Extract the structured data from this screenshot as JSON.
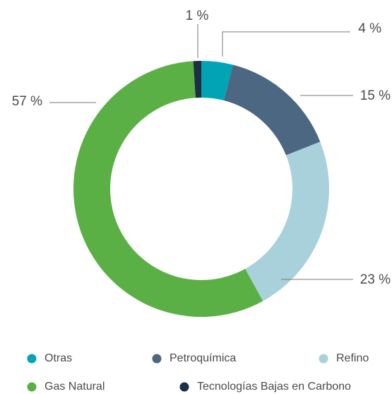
{
  "chart_data": {
    "type": "pie",
    "categories": [
      "Otras",
      "Petroquímica",
      "Refino",
      "Gas Natural",
      "Tecnologías Bajas en Carbono"
    ],
    "values": [
      4,
      15,
      23,
      57,
      1
    ],
    "value_labels": [
      "4 %",
      "15 %",
      "23 %",
      "57 %",
      "1 %"
    ],
    "colors": [
      "#00a4b4",
      "#4b6781",
      "#a9d1db",
      "#5aaf45",
      "#1e2f45"
    ]
  }
}
